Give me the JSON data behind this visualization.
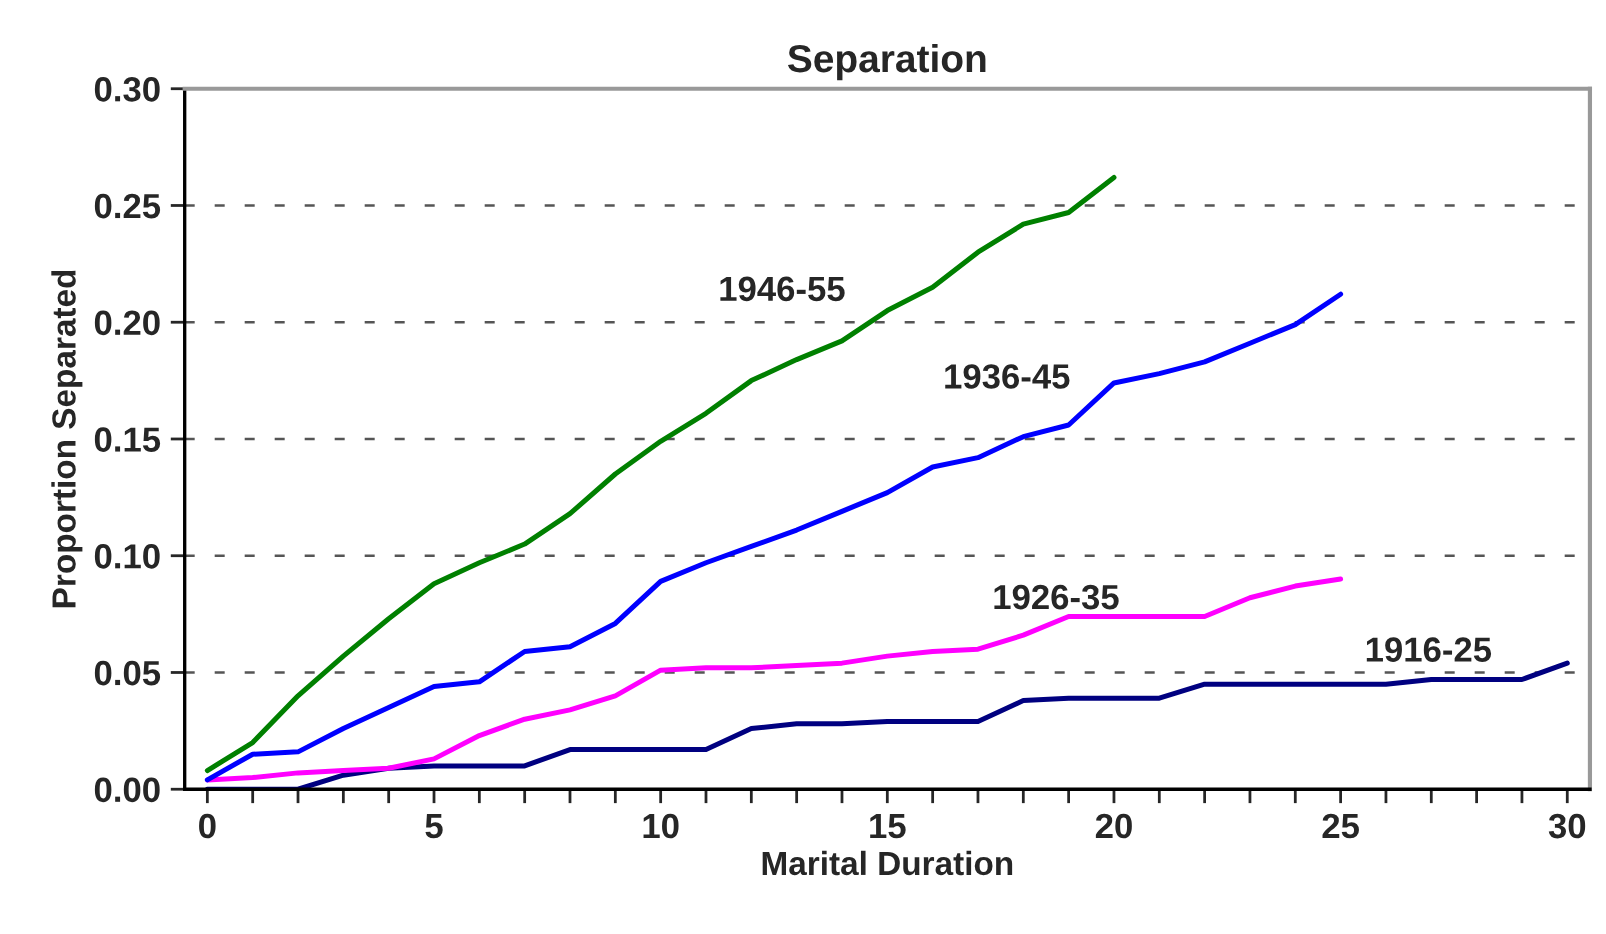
{
  "chart_data": {
    "type": "line",
    "title": "Separation",
    "xlabel": "Marital Duration",
    "ylabel": "Proportion Separated",
    "xlim": [
      -0.5,
      30.5
    ],
    "ylim": [
      0,
      0.3
    ],
    "xticks": [
      0,
      {
        "value": 1,
        "label": null
      },
      {
        "value": 2,
        "label": null
      },
      {
        "value": 3,
        "label": null
      },
      {
        "value": 4,
        "label": null
      },
      5,
      {
        "value": 6,
        "label": null
      },
      {
        "value": 7,
        "label": null
      },
      {
        "value": 8,
        "label": null
      },
      {
        "value": 9,
        "label": null
      },
      10,
      {
        "value": 11,
        "label": null
      },
      {
        "value": 12,
        "label": null
      },
      {
        "value": 13,
        "label": null
      },
      {
        "value": 14,
        "label": null
      },
      15,
      {
        "value": 16,
        "label": null
      },
      {
        "value": 17,
        "label": null
      },
      {
        "value": 18,
        "label": null
      },
      {
        "value": 19,
        "label": null
      },
      20,
      {
        "value": 21,
        "label": null
      },
      {
        "value": 22,
        "label": null
      },
      {
        "value": 23,
        "label": null
      },
      {
        "value": 24,
        "label": null
      },
      25,
      {
        "value": 26,
        "label": null
      },
      {
        "value": 27,
        "label": null
      },
      {
        "value": 28,
        "label": null
      },
      {
        "value": 29,
        "label": null
      },
      30
    ],
    "yticks": [
      {
        "value": 0,
        "label": "0.00"
      },
      {
        "value": 0.05,
        "label": "0.05"
      },
      {
        "value": 0.1,
        "label": "0.10"
      },
      {
        "value": 0.15,
        "label": "0.15"
      },
      {
        "value": 0.2,
        "label": "0.20"
      },
      {
        "value": 0.25,
        "label": "0.25"
      },
      {
        "value": 0.3,
        "label": "0.30"
      }
    ],
    "grid": "y",
    "marker": "none",
    "line_style": "solid",
    "x": [
      0,
      1,
      2,
      3,
      4,
      5,
      6,
      7,
      8,
      9,
      10,
      11,
      12,
      13,
      14,
      15,
      16,
      17,
      18,
      19,
      20,
      21,
      22,
      23,
      24,
      25,
      26,
      27,
      28,
      29,
      30
    ],
    "series": [
      {
        "name": "1916-25",
        "color": "#000080",
        "values": [
          0,
          0,
          0,
          0.006,
          0.009,
          0.01,
          0.01,
          0.01,
          0.017,
          0.017,
          0.017,
          0.017,
          0.026,
          0.028,
          0.028,
          0.029,
          0.029,
          0.029,
          0.038,
          0.039,
          0.039,
          0.039,
          0.045,
          0.045,
          0.045,
          0.045,
          0.045,
          0.047,
          0.047,
          0.047,
          0.054
        ]
      },
      {
        "name": "1926-35",
        "color": "#ff00ff",
        "values": [
          0.004,
          0.005,
          0.007,
          0.008,
          0.009,
          0.013,
          0.023,
          0.03,
          0.034,
          0.04,
          0.051,
          0.052,
          0.052,
          0.053,
          0.054,
          0.057,
          0.059,
          0.06,
          0.066,
          0.074,
          0.074,
          0.074,
          0.074,
          0.082,
          0.087,
          0.09,
          null,
          null,
          null,
          null,
          null
        ]
      },
      {
        "name": "1936-45",
        "color": "#0000ff",
        "values": [
          0.004,
          0.015,
          0.016,
          0.026,
          0.035,
          0.044,
          0.046,
          0.059,
          0.061,
          0.071,
          0.089,
          0.097,
          0.104,
          0.111,
          0.119,
          0.127,
          0.138,
          0.142,
          0.151,
          0.156,
          0.174,
          0.178,
          0.183,
          0.191,
          0.199,
          0.212,
          null,
          null,
          null,
          null,
          null
        ]
      },
      {
        "name": "1946-55",
        "color": "#008000",
        "values": [
          0.008,
          0.02,
          0.04,
          0.057,
          0.073,
          0.088,
          0.097,
          0.105,
          0.118,
          0.135,
          0.149,
          0.161,
          0.175,
          0.184,
          0.192,
          0.205,
          0.215,
          0.23,
          0.242,
          0.247,
          0.262,
          null,
          null,
          null,
          null,
          null,
          null,
          null,
          null,
          null,
          null
        ]
      }
    ]
  }
}
